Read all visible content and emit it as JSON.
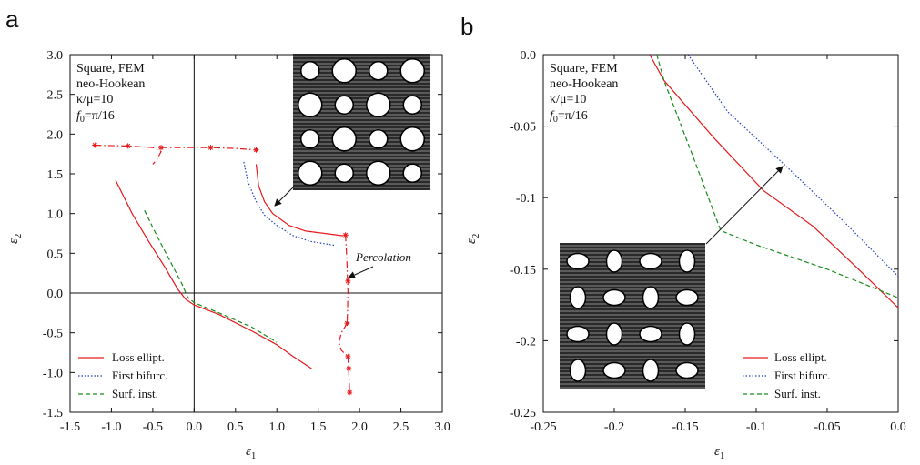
{
  "chart_data": [
    {
      "panel": "a",
      "type": "line",
      "xlabel": "ε",
      "xlabel_sub": "1",
      "ylabel": "ε",
      "ylabel_sub": "2",
      "xlim": [
        -1.5,
        3.0
      ],
      "ylim": [
        -1.5,
        3.0
      ],
      "xticks": [
        "-1.5",
        "-1.0",
        "-0.5",
        "0.0",
        "0.5",
        "1.0",
        "1.5",
        "2.0",
        "2.5",
        "3.0"
      ],
      "yticks": [
        "-1.5",
        "-1.0",
        "-0.5",
        "0.0",
        "0.5",
        "1.0",
        "1.5",
        "2.0",
        "2.5",
        "3.0"
      ],
      "info_lines": [
        "Square, FEM",
        "neo-Hookean",
        "κ/μ=10",
        "f0=π/16"
      ],
      "annotation": "Percolation",
      "legend_position": "bottom-left",
      "series": [
        {
          "name": "Loss ellipt.",
          "color": "#e41a1c",
          "style": "solid",
          "segments": [
            [
              [
                -0.95,
                1.42
              ],
              [
                -0.75,
                1.0
              ],
              [
                -0.55,
                0.65
              ],
              [
                -0.35,
                0.32
              ],
              [
                -0.2,
                0.05
              ],
              [
                -0.1,
                -0.08
              ],
              [
                0.0,
                -0.15
              ],
              [
                0.3,
                -0.27
              ],
              [
                0.7,
                -0.48
              ],
              [
                1.0,
                -0.65
              ],
              [
                1.2,
                -0.8
              ],
              [
                1.42,
                -0.95
              ]
            ],
            [
              [
                0.75,
                1.62
              ],
              [
                0.78,
                1.35
              ],
              [
                0.85,
                1.15
              ],
              [
                0.95,
                1.0
              ],
              [
                1.15,
                0.85
              ],
              [
                1.35,
                0.78
              ],
              [
                1.58,
                0.75
              ],
              [
                1.8,
                0.72
              ]
            ]
          ]
        },
        {
          "name": "First bifurc.",
          "color": "#1f3fbf",
          "style": "dotted",
          "segments": [
            [
              [
                0.6,
                1.65
              ],
              [
                0.65,
                1.4
              ],
              [
                0.75,
                1.15
              ],
              [
                0.85,
                0.98
              ],
              [
                1.0,
                0.85
              ],
              [
                1.2,
                0.72
              ],
              [
                1.4,
                0.65
              ],
              [
                1.7,
                0.6
              ]
            ]
          ]
        },
        {
          "name": "Surf. inst.",
          "color": "#1b8a1b",
          "style": "dashed",
          "segments": [
            [
              [
                -0.6,
                1.04
              ],
              [
                -0.45,
                0.72
              ],
              [
                -0.3,
                0.42
              ],
              [
                -0.15,
                0.12
              ],
              [
                -0.08,
                -0.05
              ],
              [
                0.0,
                -0.12
              ],
              [
                0.3,
                -0.25
              ],
              [
                0.7,
                -0.43
              ],
              [
                1.0,
                -0.62
              ]
            ]
          ]
        },
        {
          "name": "",
          "color": "#e41a1c",
          "style": "dashdot",
          "marker": "star",
          "segments": [
            [
              [
                -1.2,
                1.86
              ],
              [
                -0.8,
                1.85
              ],
              [
                -0.5,
                1.83
              ],
              [
                -0.4,
                1.78
              ],
              [
                -0.45,
                1.68
              ],
              [
                -0.5,
                1.62
              ]
            ],
            [
              [
                -0.4,
                1.83
              ],
              [
                0.0,
                1.83
              ],
              [
                0.2,
                1.83
              ],
              [
                0.5,
                1.82
              ],
              [
                0.75,
                1.8
              ]
            ],
            [
              [
                1.83,
                0.73
              ],
              [
                1.84,
                0.55
              ],
              [
                1.85,
                0.3
              ],
              [
                1.86,
                0.0
              ],
              [
                1.85,
                -0.38
              ]
            ],
            [
              [
                1.85,
                -0.38
              ],
              [
                1.78,
                -0.5
              ],
              [
                1.75,
                -0.62
              ],
              [
                1.78,
                -0.72
              ],
              [
                1.86,
                -0.8
              ]
            ],
            [
              [
                1.86,
                -0.8
              ],
              [
                1.87,
                -1.0
              ],
              [
                1.88,
                -1.25
              ]
            ]
          ],
          "marker_points": [
            [
              -1.2,
              1.86
            ],
            [
              -0.8,
              1.85
            ],
            [
              -0.4,
              1.83
            ],
            [
              0.2,
              1.83
            ],
            [
              0.75,
              1.8
            ],
            [
              1.83,
              0.73
            ],
            [
              1.86,
              0.15
            ],
            [
              1.85,
              -0.38
            ],
            [
              1.86,
              -0.8
            ],
            [
              1.87,
              -0.95
            ],
            [
              1.88,
              -1.25
            ]
          ]
        }
      ]
    },
    {
      "panel": "b",
      "type": "line",
      "xlabel": "ε",
      "xlabel_sub": "1",
      "ylabel": "ε",
      "ylabel_sub": "2",
      "xlim": [
        -0.25,
        0.0
      ],
      "ylim": [
        -0.25,
        0.0
      ],
      "xticks": [
        "-0.25",
        "-0.2",
        "-0.15",
        "-0.1",
        "-0.05",
        "0.0"
      ],
      "yticks": [
        "-0.25",
        "-0.2",
        "-0.15",
        "-0.1",
        "-0.05",
        "0.0"
      ],
      "info_lines": [
        "Square, FEM",
        "neo-Hookean",
        "κ/μ=10",
        "f0=π/16"
      ],
      "legend_position": "bottom-right",
      "series": [
        {
          "name": "Loss ellipt.",
          "color": "#e41a1c",
          "style": "solid",
          "segments": [
            [
              [
                -0.175,
                0.0
              ],
              [
                -0.165,
                -0.018
              ],
              [
                -0.13,
                -0.058
              ],
              [
                -0.095,
                -0.095
              ],
              [
                -0.06,
                -0.12
              ],
              [
                -0.03,
                -0.148
              ],
              [
                0.0,
                -0.177
              ]
            ]
          ]
        },
        {
          "name": "First bifurc.",
          "color": "#1f3fbf",
          "style": "dotted",
          "segments": [
            [
              [
                -0.148,
                0.0
              ],
              [
                -0.12,
                -0.04
              ],
              [
                -0.08,
                -0.077
              ],
              [
                -0.04,
                -0.115
              ],
              [
                0.0,
                -0.155
              ]
            ]
          ]
        },
        {
          "name": "Surf. inst.",
          "color": "#1b8a1b",
          "style": "dashed",
          "segments": [
            [
              [
                -0.17,
                0.0
              ],
              [
                -0.165,
                -0.018
              ],
              [
                -0.145,
                -0.07
              ],
              [
                -0.125,
                -0.123
              ],
              [
                -0.1,
                -0.133
              ],
              [
                -0.05,
                -0.15
              ],
              [
                0.0,
                -0.17
              ]
            ]
          ]
        }
      ]
    }
  ]
}
